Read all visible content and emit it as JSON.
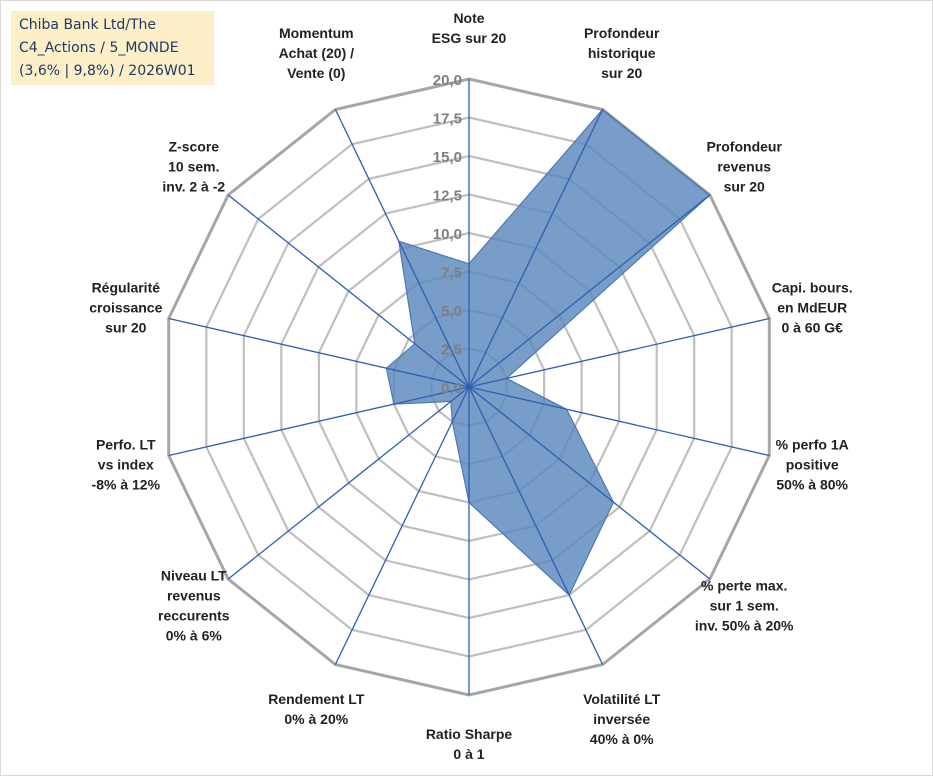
{
  "title": {
    "lines": [
      "Chiba Bank Ltd/The",
      "C4_Actions / 5_MONDE",
      "(3,6% | 9,8%) / 2026W01"
    ]
  },
  "chart_data": {
    "type": "radar",
    "title": "Chiba Bank Ltd/The C4_Actions / 5_MONDE (3,6% | 9,8%) / 2026W01",
    "r_range": [
      0,
      20
    ],
    "r_step": 2.5,
    "ticks": [
      "0,0",
      "2,5",
      "5,0",
      "7,5",
      "10,0",
      "12,5",
      "15,0",
      "17,5",
      "20,0"
    ],
    "grid": true,
    "colors": {
      "fill": "#5b87bd",
      "fill_stroke": "#4d79b0",
      "spoke": "#2f5eb3",
      "ring": "#bfbfbf",
      "outer_ring": "#a6a6a6"
    },
    "axes": [
      {
        "label": [
          "Note",
          "ESG sur 20"
        ],
        "value": 8.0
      },
      {
        "label": [
          "Profondeur",
          "historique",
          "sur 20"
        ],
        "value": 20.0
      },
      {
        "label": [
          "Profondeur",
          "revenus",
          "sur 20"
        ],
        "value": 20.0
      },
      {
        "label": [
          "Capi. bours.",
          "en MdEUR",
          "0 à 60 G€"
        ],
        "value": 2.5
      },
      {
        "label": [
          "% perfo 1A",
          "positive",
          "50% à 80%"
        ],
        "value": 6.5
      },
      {
        "label": [
          "% perte max.",
          "sur 1 sem.",
          "inv. 50% à 20%"
        ],
        "value": 12.0
      },
      {
        "label": [
          "Volatilité LT",
          "inversée",
          "40% à 0%"
        ],
        "value": 15.0
      },
      {
        "label": [
          "Ratio Sharpe",
          "0 à 1"
        ],
        "value": 7.5
      },
      {
        "label": [
          "Rendement LT",
          "0% à 20%"
        ],
        "value": 2.5
      },
      {
        "label": [
          "Niveau LT",
          "revenus",
          "reccurents",
          "0% à 6%"
        ],
        "value": 1.5
      },
      {
        "label": [
          "Perfo. LT",
          "vs index",
          "-8% à 12%"
        ],
        "value": 5.0
      },
      {
        "label": [
          "Régularité",
          "croissance",
          "sur 20"
        ],
        "value": 5.5
      },
      {
        "label": [
          "Z-score",
          "10 sem.",
          "inv. 2 à -2"
        ],
        "value": 4.5
      },
      {
        "label": [
          "Momentum",
          "Achat (20) /",
          "Vente (0)"
        ],
        "value": 10.5
      }
    ]
  }
}
